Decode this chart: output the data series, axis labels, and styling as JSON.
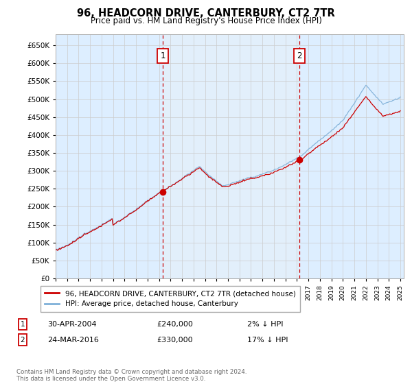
{
  "title": "96, HEADCORN DRIVE, CANTERBURY, CT2 7TR",
  "subtitle": "Price paid vs. HM Land Registry's House Price Index (HPI)",
  "legend_line1": "96, HEADCORN DRIVE, CANTERBURY, CT2 7TR (detached house)",
  "legend_line2": "HPI: Average price, detached house, Canterbury",
  "annotation1_date": "30-APR-2004",
  "annotation1_price": "£240,000",
  "annotation1_hpi": "2% ↓ HPI",
  "annotation2_date": "24-MAR-2016",
  "annotation2_price": "£330,000",
  "annotation2_hpi": "17% ↓ HPI",
  "plot_bg_color": "#ddeeff",
  "grid_color": "#cccccc",
  "red_line_color": "#cc0000",
  "blue_line_color": "#7fb0d8",
  "sale1_year": 2004.33,
  "sale1_value": 240000,
  "sale2_year": 2016.22,
  "sale2_value": 330000,
  "footer": "Contains HM Land Registry data © Crown copyright and database right 2024.\nThis data is licensed under the Open Government Licence v3.0.",
  "ylim": [
    0,
    680000
  ],
  "yticks": [
    0,
    50000,
    100000,
    150000,
    200000,
    250000,
    300000,
    350000,
    400000,
    450000,
    500000,
    550000,
    600000,
    650000
  ]
}
